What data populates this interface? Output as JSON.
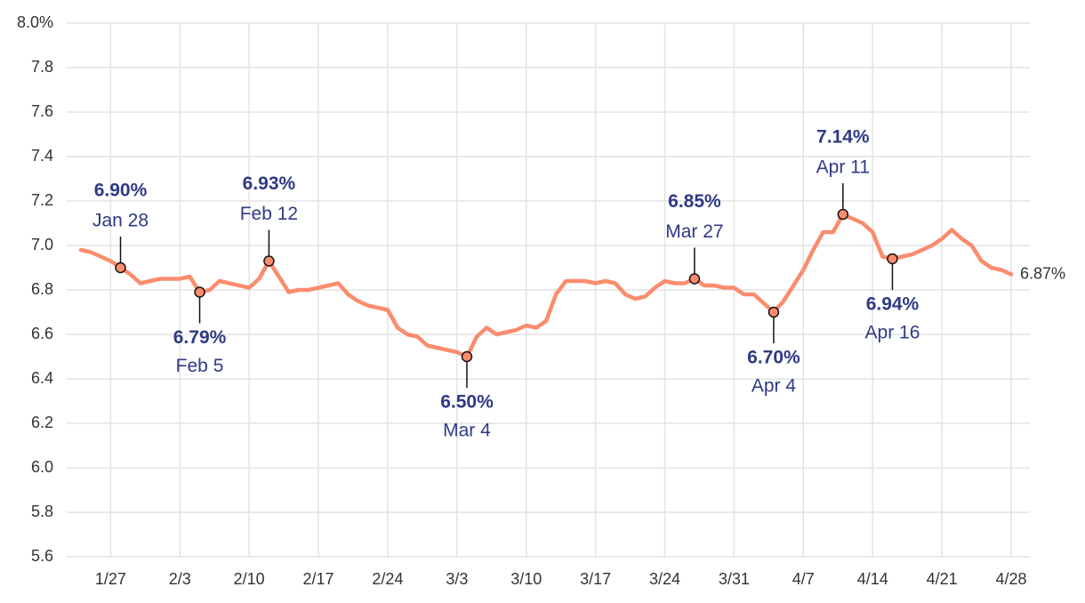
{
  "chart_data": {
    "type": "line",
    "x": [
      "1/24",
      "1/25",
      "1/26",
      "1/27",
      "1/28",
      "1/29",
      "1/30",
      "1/31",
      "2/1",
      "2/2",
      "2/3",
      "2/4",
      "2/5",
      "2/6",
      "2/7",
      "2/8",
      "2/9",
      "2/10",
      "2/11",
      "2/12",
      "2/13",
      "2/14",
      "2/15",
      "2/16",
      "2/17",
      "2/18",
      "2/19",
      "2/20",
      "2/21",
      "2/22",
      "2/23",
      "2/24",
      "2/25",
      "2/26",
      "2/27",
      "2/28",
      "3/1",
      "3/2",
      "3/3",
      "3/4",
      "3/5",
      "3/6",
      "3/7",
      "3/8",
      "3/9",
      "3/10",
      "3/11",
      "3/12",
      "3/13",
      "3/14",
      "3/15",
      "3/16",
      "3/17",
      "3/18",
      "3/19",
      "3/20",
      "3/21",
      "3/22",
      "3/23",
      "3/24",
      "3/25",
      "3/26",
      "3/27",
      "3/28",
      "3/29",
      "3/30",
      "3/31",
      "4/1",
      "4/2",
      "4/3",
      "4/4",
      "4/5",
      "4/6",
      "4/7",
      "4/8",
      "4/9",
      "4/10",
      "4/11",
      "4/12",
      "4/13",
      "4/14",
      "4/15",
      "4/16",
      "4/17",
      "4/18",
      "4/19",
      "4/20",
      "4/21",
      "4/22",
      "4/23",
      "4/24",
      "4/25",
      "4/26",
      "4/27",
      "4/28"
    ],
    "series": [
      {
        "color": "#fa8c6e",
        "values": [
          6.98,
          6.97,
          6.95,
          6.93,
          6.9,
          6.87,
          6.83,
          6.84,
          6.85,
          6.85,
          6.85,
          6.86,
          6.79,
          6.8,
          6.84,
          6.83,
          6.82,
          6.81,
          6.85,
          6.93,
          6.86,
          6.79,
          6.8,
          6.8,
          6.81,
          6.82,
          6.83,
          6.78,
          6.75,
          6.73,
          6.72,
          6.71,
          6.63,
          6.6,
          6.59,
          6.55,
          6.54,
          6.53,
          6.52,
          6.5,
          6.59,
          6.63,
          6.6,
          6.61,
          6.62,
          6.64,
          6.63,
          6.66,
          6.78,
          6.84,
          6.84,
          6.84,
          6.83,
          6.84,
          6.83,
          6.78,
          6.76,
          6.77,
          6.81,
          6.84,
          6.83,
          6.83,
          6.85,
          6.82,
          6.82,
          6.81,
          6.81,
          6.78,
          6.78,
          6.74,
          6.7,
          6.75,
          6.82,
          6.89,
          6.98,
          7.06,
          7.06,
          7.14,
          7.12,
          7.1,
          7.06,
          6.95,
          6.94,
          6.95,
          6.96,
          6.98,
          7.0,
          7.03,
          7.07,
          7.03,
          7.0,
          6.93,
          6.9,
          6.89,
          6.87
        ]
      }
    ],
    "xlim": [
      "1/24",
      "4/28"
    ],
    "xticks": [
      "1/27",
      "2/3",
      "2/10",
      "2/17",
      "2/24",
      "3/3",
      "3/10",
      "3/17",
      "3/24",
      "3/31",
      "4/7",
      "4/14",
      "4/21",
      "4/28"
    ],
    "ylim": [
      5.6,
      8.0
    ],
    "yticks": [
      {
        "value": 5.6,
        "label": "5.6"
      },
      5.8,
      {
        "value": 6.0,
        "label": "6.0"
      },
      6.2,
      6.4,
      6.6,
      6.8,
      {
        "value": 7.0,
        "label": "7.0"
      },
      7.2,
      7.4,
      7.6,
      7.8,
      {
        "value": 8.0,
        "label": "8.0%"
      }
    ],
    "grid": true,
    "annotations": [
      {
        "x": "1/28",
        "value": 6.9,
        "label": "6.90%",
        "date": "Jan 28",
        "position": "above"
      },
      {
        "x": "2/5",
        "value": 6.79,
        "label": "6.79%",
        "date": "Feb 5",
        "position": "below"
      },
      {
        "x": "2/12",
        "value": 6.93,
        "label": "6.93%",
        "date": "Feb 12",
        "position": "above"
      },
      {
        "x": "3/4",
        "value": 6.5,
        "label": "6.50%",
        "date": "Mar 4",
        "position": "below"
      },
      {
        "x": "3/27",
        "value": 6.85,
        "label": "6.85%",
        "date": "Mar 27",
        "position": "above"
      },
      {
        "x": "4/4",
        "value": 6.7,
        "label": "6.70%",
        "date": "Apr 4",
        "position": "below"
      },
      {
        "x": "4/11",
        "value": 7.14,
        "label": "7.14%",
        "date": "Apr 11",
        "position": "above"
      },
      {
        "x": "4/16",
        "value": 6.94,
        "label": "6.94%",
        "date": "Apr 16",
        "position": "below"
      }
    ],
    "end_label": {
      "value": 6.87,
      "label": "6.87%"
    }
  }
}
